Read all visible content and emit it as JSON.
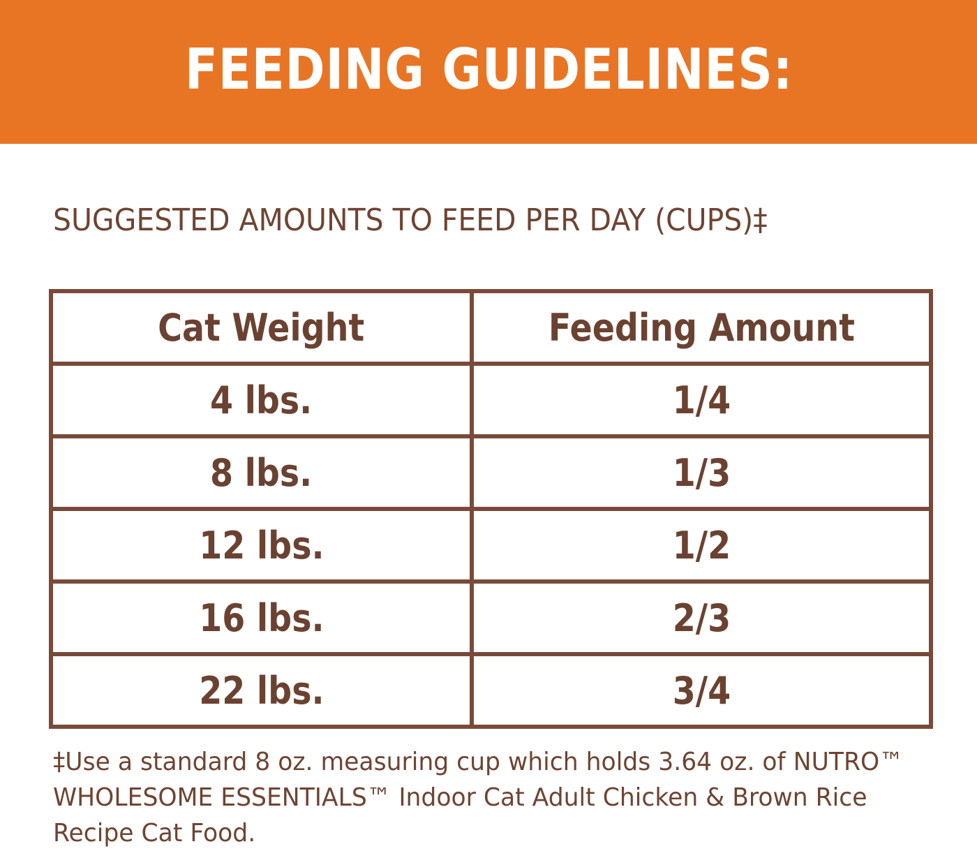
{
  "header": {
    "title": "FEEDING GUIDELINES:"
  },
  "subtitle": "SUGGESTED AMOUNTS TO FEED PER DAY (CUPS)‡",
  "table": {
    "columns": [
      "Cat Weight",
      "Feeding Amount"
    ],
    "rows": [
      [
        "4 lbs.",
        "1/4"
      ],
      [
        "8 lbs.",
        "1/3"
      ],
      [
        "12 lbs.",
        "1/2"
      ],
      [
        "16 lbs.",
        "2/3"
      ],
      [
        "22 lbs.",
        "3/4"
      ]
    ]
  },
  "footnote": "‡Use a standard 8 oz. measuring cup which holds 3.64 oz. of NUTRO™ WHOLESOME ESSENTIALS™ Indoor Cat Adult Chicken & Brown Rice Recipe Cat Food.",
  "colors": {
    "banner": "#e87524",
    "text_brown": "#6b4231",
    "border_brown": "#7a4a39"
  }
}
